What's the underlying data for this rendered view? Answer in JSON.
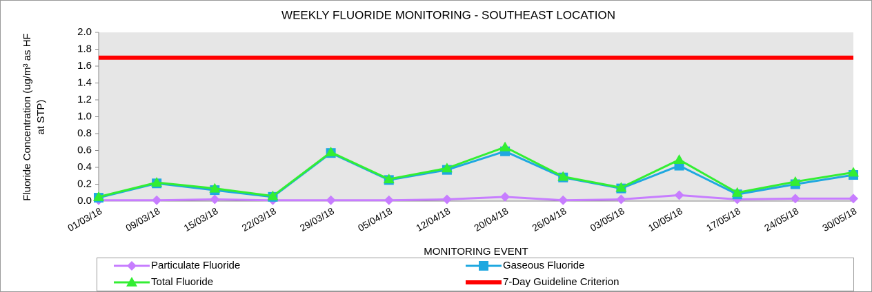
{
  "chart_data": {
    "type": "line",
    "title": "WEEKLY FLUORIDE MONITORING - SOUTHEAST LOCATION",
    "xlabel": "MONITORING EVENT",
    "ylabel": [
      "Fluoride Concentration (ug/m³ as HF",
      "at STP)"
    ],
    "categories": [
      "01/03/18",
      "09/03/18",
      "15/03/18",
      "22/03/18",
      "29/03/18",
      "05/04/18",
      "12/04/18",
      "20/04/18",
      "26/04/18",
      "03/05/18",
      "10/05/18",
      "17/05/18",
      "24/05/18",
      "30/05/18"
    ],
    "ylim": [
      0,
      2
    ],
    "yticks": [
      {
        "value": 0,
        "label": "0.0"
      },
      0.2,
      0.4,
      0.6,
      0.8,
      {
        "value": 1,
        "label": "1.0"
      },
      1.2,
      1.4,
      1.6,
      1.8,
      {
        "value": 2,
        "label": "2.0"
      }
    ],
    "grid": false,
    "legend": "bottom",
    "series": [
      {
        "name": "Particulate Fluoride",
        "color": "#c77dff",
        "marker": "diamond",
        "values": [
          0.01,
          0.01,
          0.02,
          0.01,
          0.01,
          0.01,
          0.02,
          0.05,
          0.01,
          0.02,
          0.07,
          0.02,
          0.03,
          0.03
        ]
      },
      {
        "name": "Gaseous Fluoride",
        "color": "#1fa8e0",
        "marker": "square",
        "values": [
          0.04,
          0.21,
          0.13,
          0.05,
          0.57,
          0.25,
          0.37,
          0.59,
          0.28,
          0.15,
          0.42,
          0.08,
          0.2,
          0.31
        ]
      },
      {
        "name": "Total Fluoride",
        "color": "#33ee33",
        "marker": "triangle",
        "values": [
          0.05,
          0.22,
          0.15,
          0.06,
          0.58,
          0.26,
          0.39,
          0.64,
          0.29,
          0.16,
          0.49,
          0.1,
          0.23,
          0.34
        ]
      },
      {
        "name": "7-Day Guideline Criterion",
        "color": "#ff0000",
        "marker": "none",
        "values": [
          1.7,
          1.7,
          1.7,
          1.7,
          1.7,
          1.7,
          1.7,
          1.7,
          1.7,
          1.7,
          1.7,
          1.7,
          1.7,
          1.7
        ]
      }
    ]
  }
}
